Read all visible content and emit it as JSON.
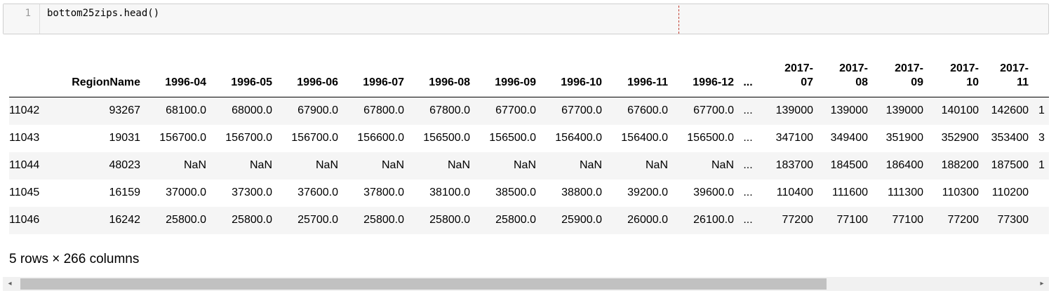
{
  "cell": {
    "line_number": "1",
    "code": "bottom25zips.head()"
  },
  "table": {
    "columns": [
      "",
      "RegionName",
      "1996-04",
      "1996-05",
      "1996-06",
      "1996-07",
      "1996-08",
      "1996-09",
      "1996-10",
      "1996-11",
      "1996-12",
      "...",
      "2017-\n07",
      "2017-\n08",
      "2017-\n09",
      "2017-\n10",
      "2017-\n11",
      ""
    ],
    "rows": [
      [
        "11042",
        "93267",
        "68100.0",
        "68000.0",
        "67900.0",
        "67800.0",
        "67800.0",
        "67700.0",
        "67700.0",
        "67600.0",
        "67700.0",
        "...",
        "139000",
        "139000",
        "139000",
        "140100",
        "142600",
        "1"
      ],
      [
        "11043",
        "19031",
        "156700.0",
        "156700.0",
        "156700.0",
        "156600.0",
        "156500.0",
        "156500.0",
        "156400.0",
        "156400.0",
        "156500.0",
        "...",
        "347100",
        "349400",
        "351900",
        "352900",
        "353400",
        "3"
      ],
      [
        "11044",
        "48023",
        "NaN",
        "NaN",
        "NaN",
        "NaN",
        "NaN",
        "NaN",
        "NaN",
        "NaN",
        "NaN",
        "...",
        "183700",
        "184500",
        "186400",
        "188200",
        "187500",
        "1"
      ],
      [
        "11045",
        "16159",
        "37000.0",
        "37300.0",
        "37600.0",
        "37800.0",
        "38100.0",
        "38500.0",
        "38800.0",
        "39200.0",
        "39600.0",
        "...",
        "110400",
        "111600",
        "111300",
        "110300",
        "110200",
        ""
      ],
      [
        "11046",
        "16242",
        "25800.0",
        "25800.0",
        "25700.0",
        "25800.0",
        "25800.0",
        "25800.0",
        "25900.0",
        "26000.0",
        "26100.0",
        "...",
        "77200",
        "77100",
        "77100",
        "77200",
        "77300",
        ""
      ]
    ]
  },
  "summary": "5 rows × 266 columns",
  "scrollbar": {
    "left_arrow": "◂",
    "right_arrow": "▸",
    "position": 0.0
  }
}
